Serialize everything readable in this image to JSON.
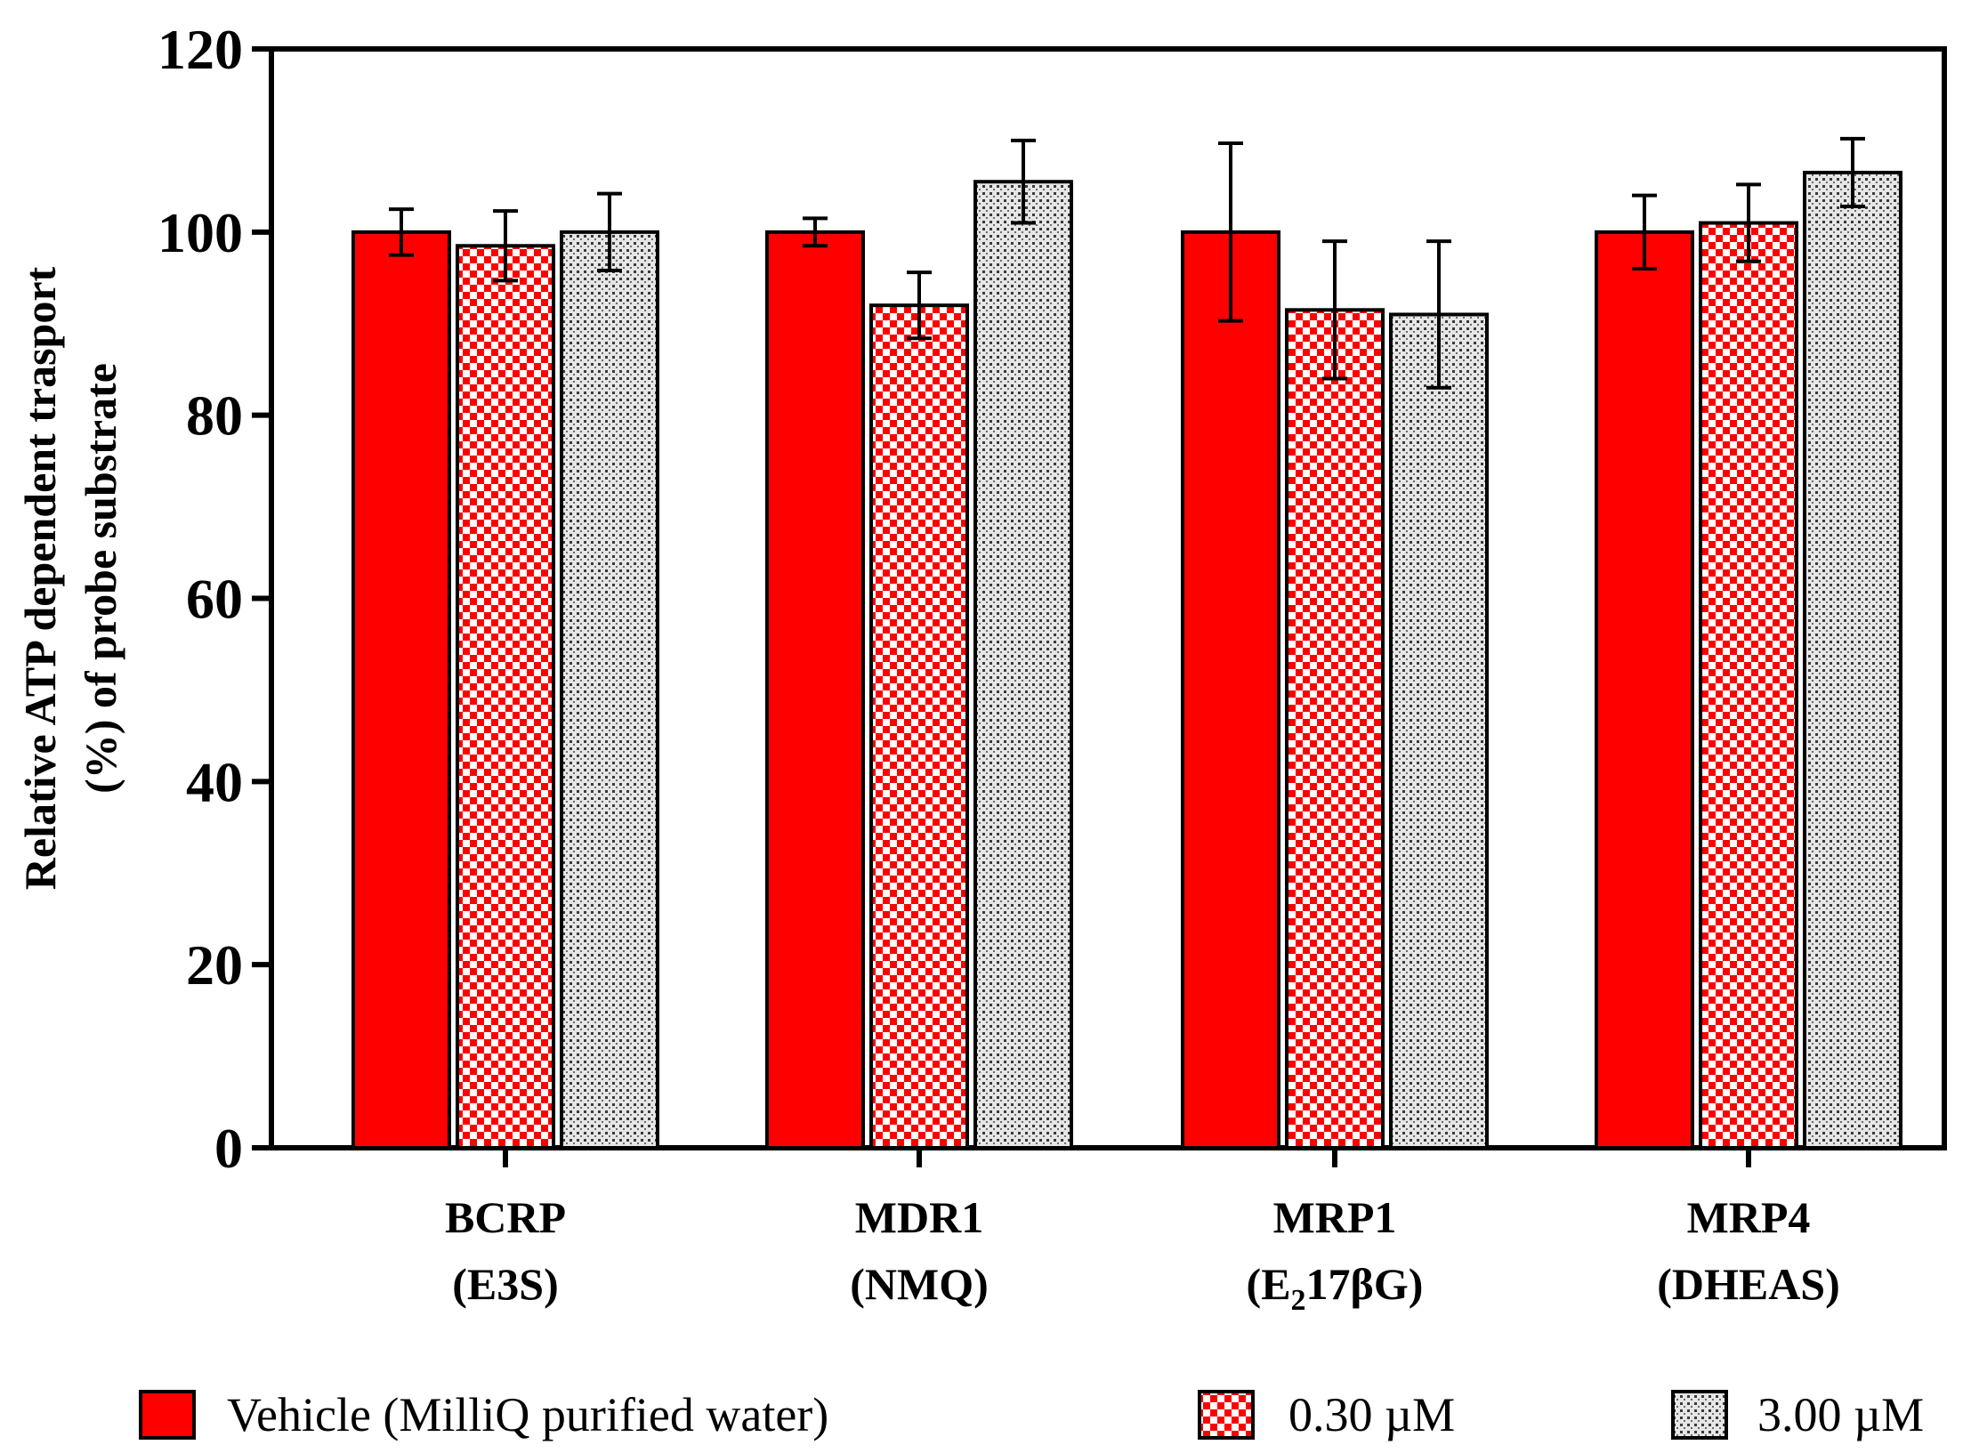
{
  "chart_data": {
    "type": "bar",
    "categories": [
      {
        "line1": "BCRP",
        "line2": "(E3S)",
        "line2_main": "(E3S)",
        "line2_sub": "",
        "line2_tail": ""
      },
      {
        "line1": "MDR1",
        "line2": "(NMQ)",
        "line2_main": "(NMQ)",
        "line2_sub": "",
        "line2_tail": ""
      },
      {
        "line1": "MRP1",
        "line2": "(E217βG)",
        "line2_main": "(E",
        "line2_sub": "2",
        "line2_tail": "17βG)"
      },
      {
        "line1": "MRP4",
        "line2": "(DHEAS)",
        "line2_main": "(DHEAS)",
        "line2_sub": "",
        "line2_tail": ""
      }
    ],
    "series": [
      {
        "name": "Vehicle (MilliQ purified water)",
        "pattern": "solid",
        "values": [
          100,
          100,
          100,
          100
        ],
        "errors": [
          2.5,
          1.5,
          9.7,
          4.0
        ]
      },
      {
        "name": "0.30 µM",
        "pattern": "checker",
        "values": [
          98.5,
          92,
          91.5,
          101
        ],
        "errors": [
          3.8,
          3.6,
          7.5,
          4.2
        ]
      },
      {
        "name": "3.00 µM",
        "pattern": "dots",
        "values": [
          100,
          105.5,
          91,
          106.5
        ],
        "errors": [
          4.2,
          4.5,
          8.0,
          3.7
        ]
      }
    ],
    "ylabel_line1": "Relative ATP dependent trasport",
    "ylabel_line2": "(%) of probe substrate",
    "ylim": [
      0,
      120
    ],
    "yticks": [
      0,
      20,
      40,
      60,
      80,
      100,
      120
    ],
    "legend_position": "bottom",
    "colors": {
      "primary": "#ff0000",
      "secondary": "#c8c8c8",
      "axis": "#000000"
    }
  }
}
